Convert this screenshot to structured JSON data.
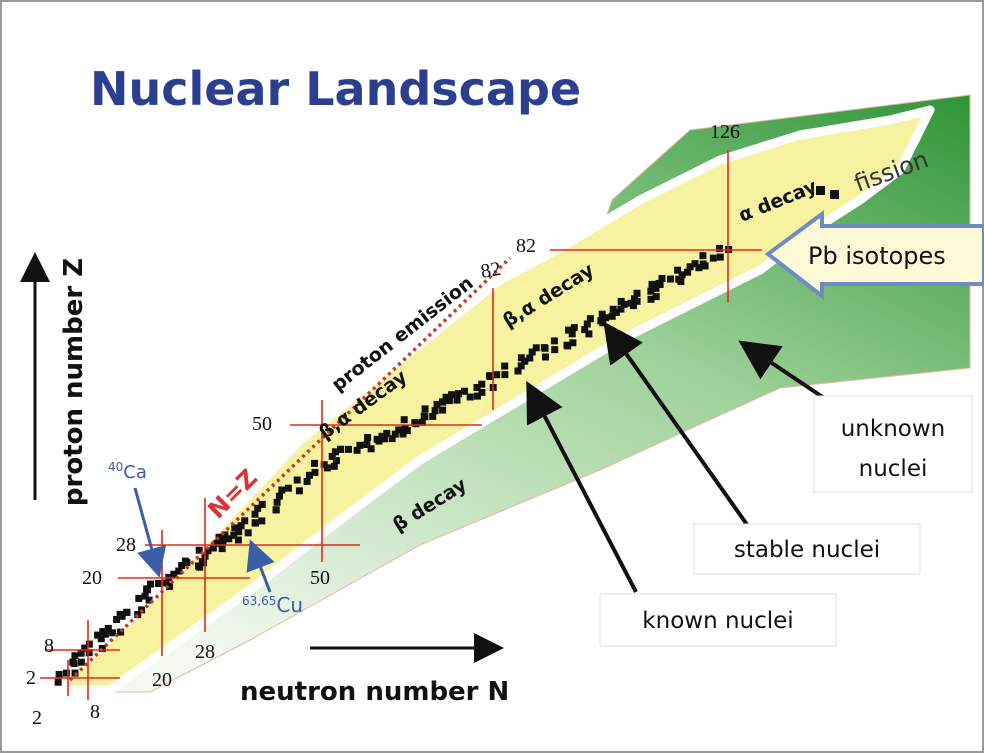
{
  "title": "Nuclear Landscape",
  "axes": {
    "y_label": "proton number Z",
    "x_label": "neutron number N"
  },
  "magic_numbers": {
    "proton": [
      2,
      8,
      20,
      28,
      50,
      82
    ],
    "neutron": [
      2,
      8,
      20,
      28,
      50,
      82,
      126
    ]
  },
  "regions": {
    "proton_emission": "proton emission",
    "beta_alpha_1": "β,α decay",
    "beta_alpha_2": "β,α decay",
    "alpha": "α decay",
    "fission": "fission",
    "beta": "β decay",
    "n_equals_z": "N=Z"
  },
  "isotopes": {
    "ca": {
      "mass": "40",
      "symbol": "Ca"
    },
    "cu": {
      "mass": "63,65",
      "symbol": "Cu"
    },
    "pb": "Pb isotopes"
  },
  "callouts": {
    "unknown": [
      "unknown",
      "nuclei"
    ],
    "stable": "stable nuclei",
    "known": "known nuclei"
  }
}
